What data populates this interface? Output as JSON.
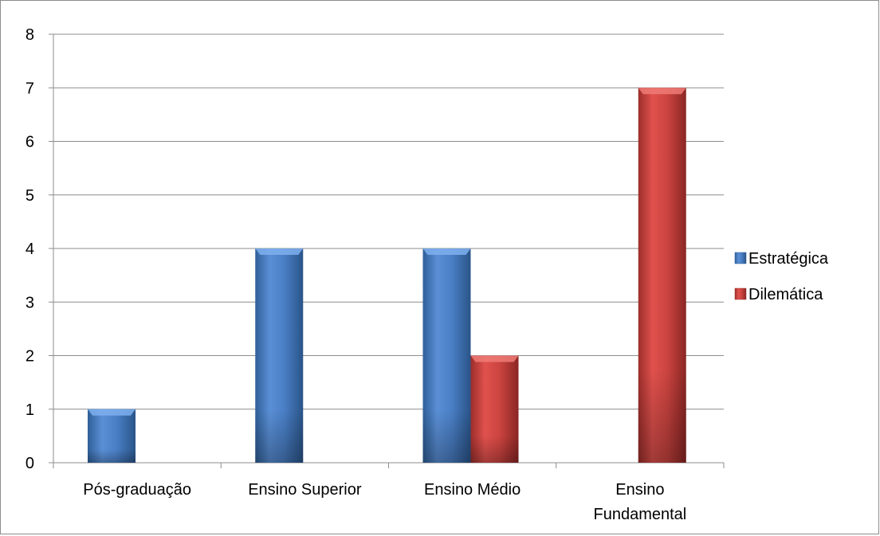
{
  "chart_data": {
    "type": "bar",
    "title": "",
    "xlabel": "",
    "ylabel": "",
    "categories": [
      [
        "Pós-graduação"
      ],
      [
        "Ensino Superior"
      ],
      [
        "Ensino Médio"
      ],
      [
        "Ensino",
        "Fundamental"
      ]
    ],
    "series": [
      {
        "name": "Estratégica",
        "values": [
          1,
          4,
          4,
          0
        ],
        "color": "#4f81bd"
      },
      {
        "name": "Dilemática",
        "values": [
          0,
          0,
          2,
          7
        ],
        "color": "#c0504d"
      }
    ],
    "ylim": [
      0,
      8
    ],
    "yticks": [
      "0",
      "1",
      "2",
      "3",
      "4",
      "5",
      "6",
      "7",
      "8"
    ],
    "grid": true,
    "legend": "right"
  }
}
